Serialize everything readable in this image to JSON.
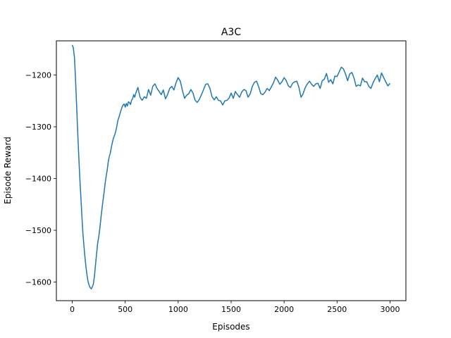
{
  "chart_data": {
    "type": "line",
    "title": "A3C",
    "xlabel": "Episodes",
    "ylabel": "Episode Reward",
    "xlim": [
      -150,
      3150
    ],
    "ylim": [
      -1636,
      -1134
    ],
    "xticks": [
      0,
      500,
      1000,
      1500,
      2000,
      2500,
      3000
    ],
    "xtick_labels": [
      "0",
      "500",
      "1000",
      "1500",
      "2000",
      "2500",
      "3000"
    ],
    "yticks": [
      -1600,
      -1500,
      -1400,
      -1300,
      -1200
    ],
    "ytick_labels": [
      "−1600",
      "−1500",
      "−1400",
      "−1300",
      "−1200"
    ],
    "grid": false,
    "legend": null,
    "series": [
      {
        "color": "#1f77b4",
        "x": [
          0,
          10,
          20,
          30,
          40,
          50,
          60,
          70,
          80,
          90,
          100,
          110,
          120,
          130,
          140,
          150,
          160,
          170,
          180,
          190,
          200,
          210,
          220,
          230,
          240,
          250,
          260,
          270,
          280,
          290,
          300,
          310,
          320,
          330,
          340,
          350,
          360,
          370,
          380,
          390,
          400,
          410,
          420,
          430,
          440,
          450,
          460,
          470,
          480,
          490,
          500,
          510,
          520,
          530,
          540,
          550,
          560,
          570,
          580,
          590,
          600,
          620,
          640,
          660,
          680,
          700,
          720,
          740,
          760,
          780,
          800,
          820,
          840,
          860,
          880,
          900,
          920,
          940,
          960,
          980,
          1000,
          1020,
          1040,
          1060,
          1080,
          1100,
          1120,
          1140,
          1160,
          1180,
          1200,
          1220,
          1240,
          1260,
          1280,
          1300,
          1320,
          1340,
          1360,
          1380,
          1400,
          1420,
          1440,
          1460,
          1480,
          1500,
          1520,
          1540,
          1560,
          1580,
          1600,
          1620,
          1640,
          1660,
          1680,
          1700,
          1720,
          1740,
          1760,
          1780,
          1800,
          1820,
          1840,
          1860,
          1880,
          1900,
          1920,
          1940,
          1960,
          1980,
          2000,
          2020,
          2040,
          2060,
          2080,
          2100,
          2120,
          2140,
          2160,
          2180,
          2200,
          2220,
          2240,
          2260,
          2280,
          2300,
          2320,
          2340,
          2360,
          2380,
          2400,
          2420,
          2440,
          2460,
          2480,
          2500,
          2520,
          2540,
          2560,
          2580,
          2600,
          2620,
          2640,
          2660,
          2680,
          2700,
          2720,
          2740,
          2760,
          2780,
          2800,
          2820,
          2840,
          2860,
          2880,
          2900,
          2920,
          2940,
          2960,
          2980,
          3000
        ],
        "y": [
          -1142,
          -1147,
          -1165,
          -1205,
          -1255,
          -1305,
          -1352,
          -1395,
          -1432,
          -1470,
          -1505,
          -1530,
          -1553,
          -1572,
          -1588,
          -1600,
          -1607,
          -1611,
          -1613,
          -1609,
          -1603,
          -1588,
          -1566,
          -1545,
          -1525,
          -1513,
          -1497,
          -1478,
          -1460,
          -1443,
          -1428,
          -1410,
          -1396,
          -1384,
          -1368,
          -1357,
          -1350,
          -1338,
          -1329,
          -1321,
          -1316,
          -1309,
          -1300,
          -1288,
          -1282,
          -1275,
          -1268,
          -1262,
          -1258,
          -1256,
          -1262,
          -1255,
          -1260,
          -1252,
          -1253,
          -1257,
          -1249,
          -1246,
          -1238,
          -1243,
          -1235,
          -1224,
          -1243,
          -1249,
          -1242,
          -1245,
          -1228,
          -1239,
          -1222,
          -1217,
          -1226,
          -1232,
          -1238,
          -1229,
          -1246,
          -1238,
          -1226,
          -1222,
          -1229,
          -1215,
          -1205,
          -1212,
          -1230,
          -1245,
          -1239,
          -1236,
          -1228,
          -1235,
          -1249,
          -1253,
          -1247,
          -1238,
          -1228,
          -1218,
          -1217,
          -1226,
          -1242,
          -1248,
          -1242,
          -1249,
          -1250,
          -1258,
          -1250,
          -1249,
          -1245,
          -1235,
          -1245,
          -1232,
          -1238,
          -1243,
          -1233,
          -1228,
          -1230,
          -1243,
          -1236,
          -1222,
          -1214,
          -1212,
          -1223,
          -1236,
          -1238,
          -1233,
          -1226,
          -1230,
          -1223,
          -1215,
          -1204,
          -1210,
          -1218,
          -1213,
          -1205,
          -1211,
          -1221,
          -1224,
          -1216,
          -1213,
          -1212,
          -1224,
          -1243,
          -1236,
          -1224,
          -1217,
          -1212,
          -1218,
          -1222,
          -1217,
          -1216,
          -1226,
          -1211,
          -1208,
          -1197,
          -1214,
          -1209,
          -1217,
          -1202,
          -1203,
          -1194,
          -1185,
          -1188,
          -1198,
          -1211,
          -1198,
          -1195,
          -1206,
          -1222,
          -1219,
          -1221,
          -1206,
          -1213,
          -1213,
          -1222,
          -1226,
          -1215,
          -1207,
          -1200,
          -1213,
          -1196,
          -1205,
          -1213,
          -1221,
          -1216
        ]
      }
    ]
  }
}
